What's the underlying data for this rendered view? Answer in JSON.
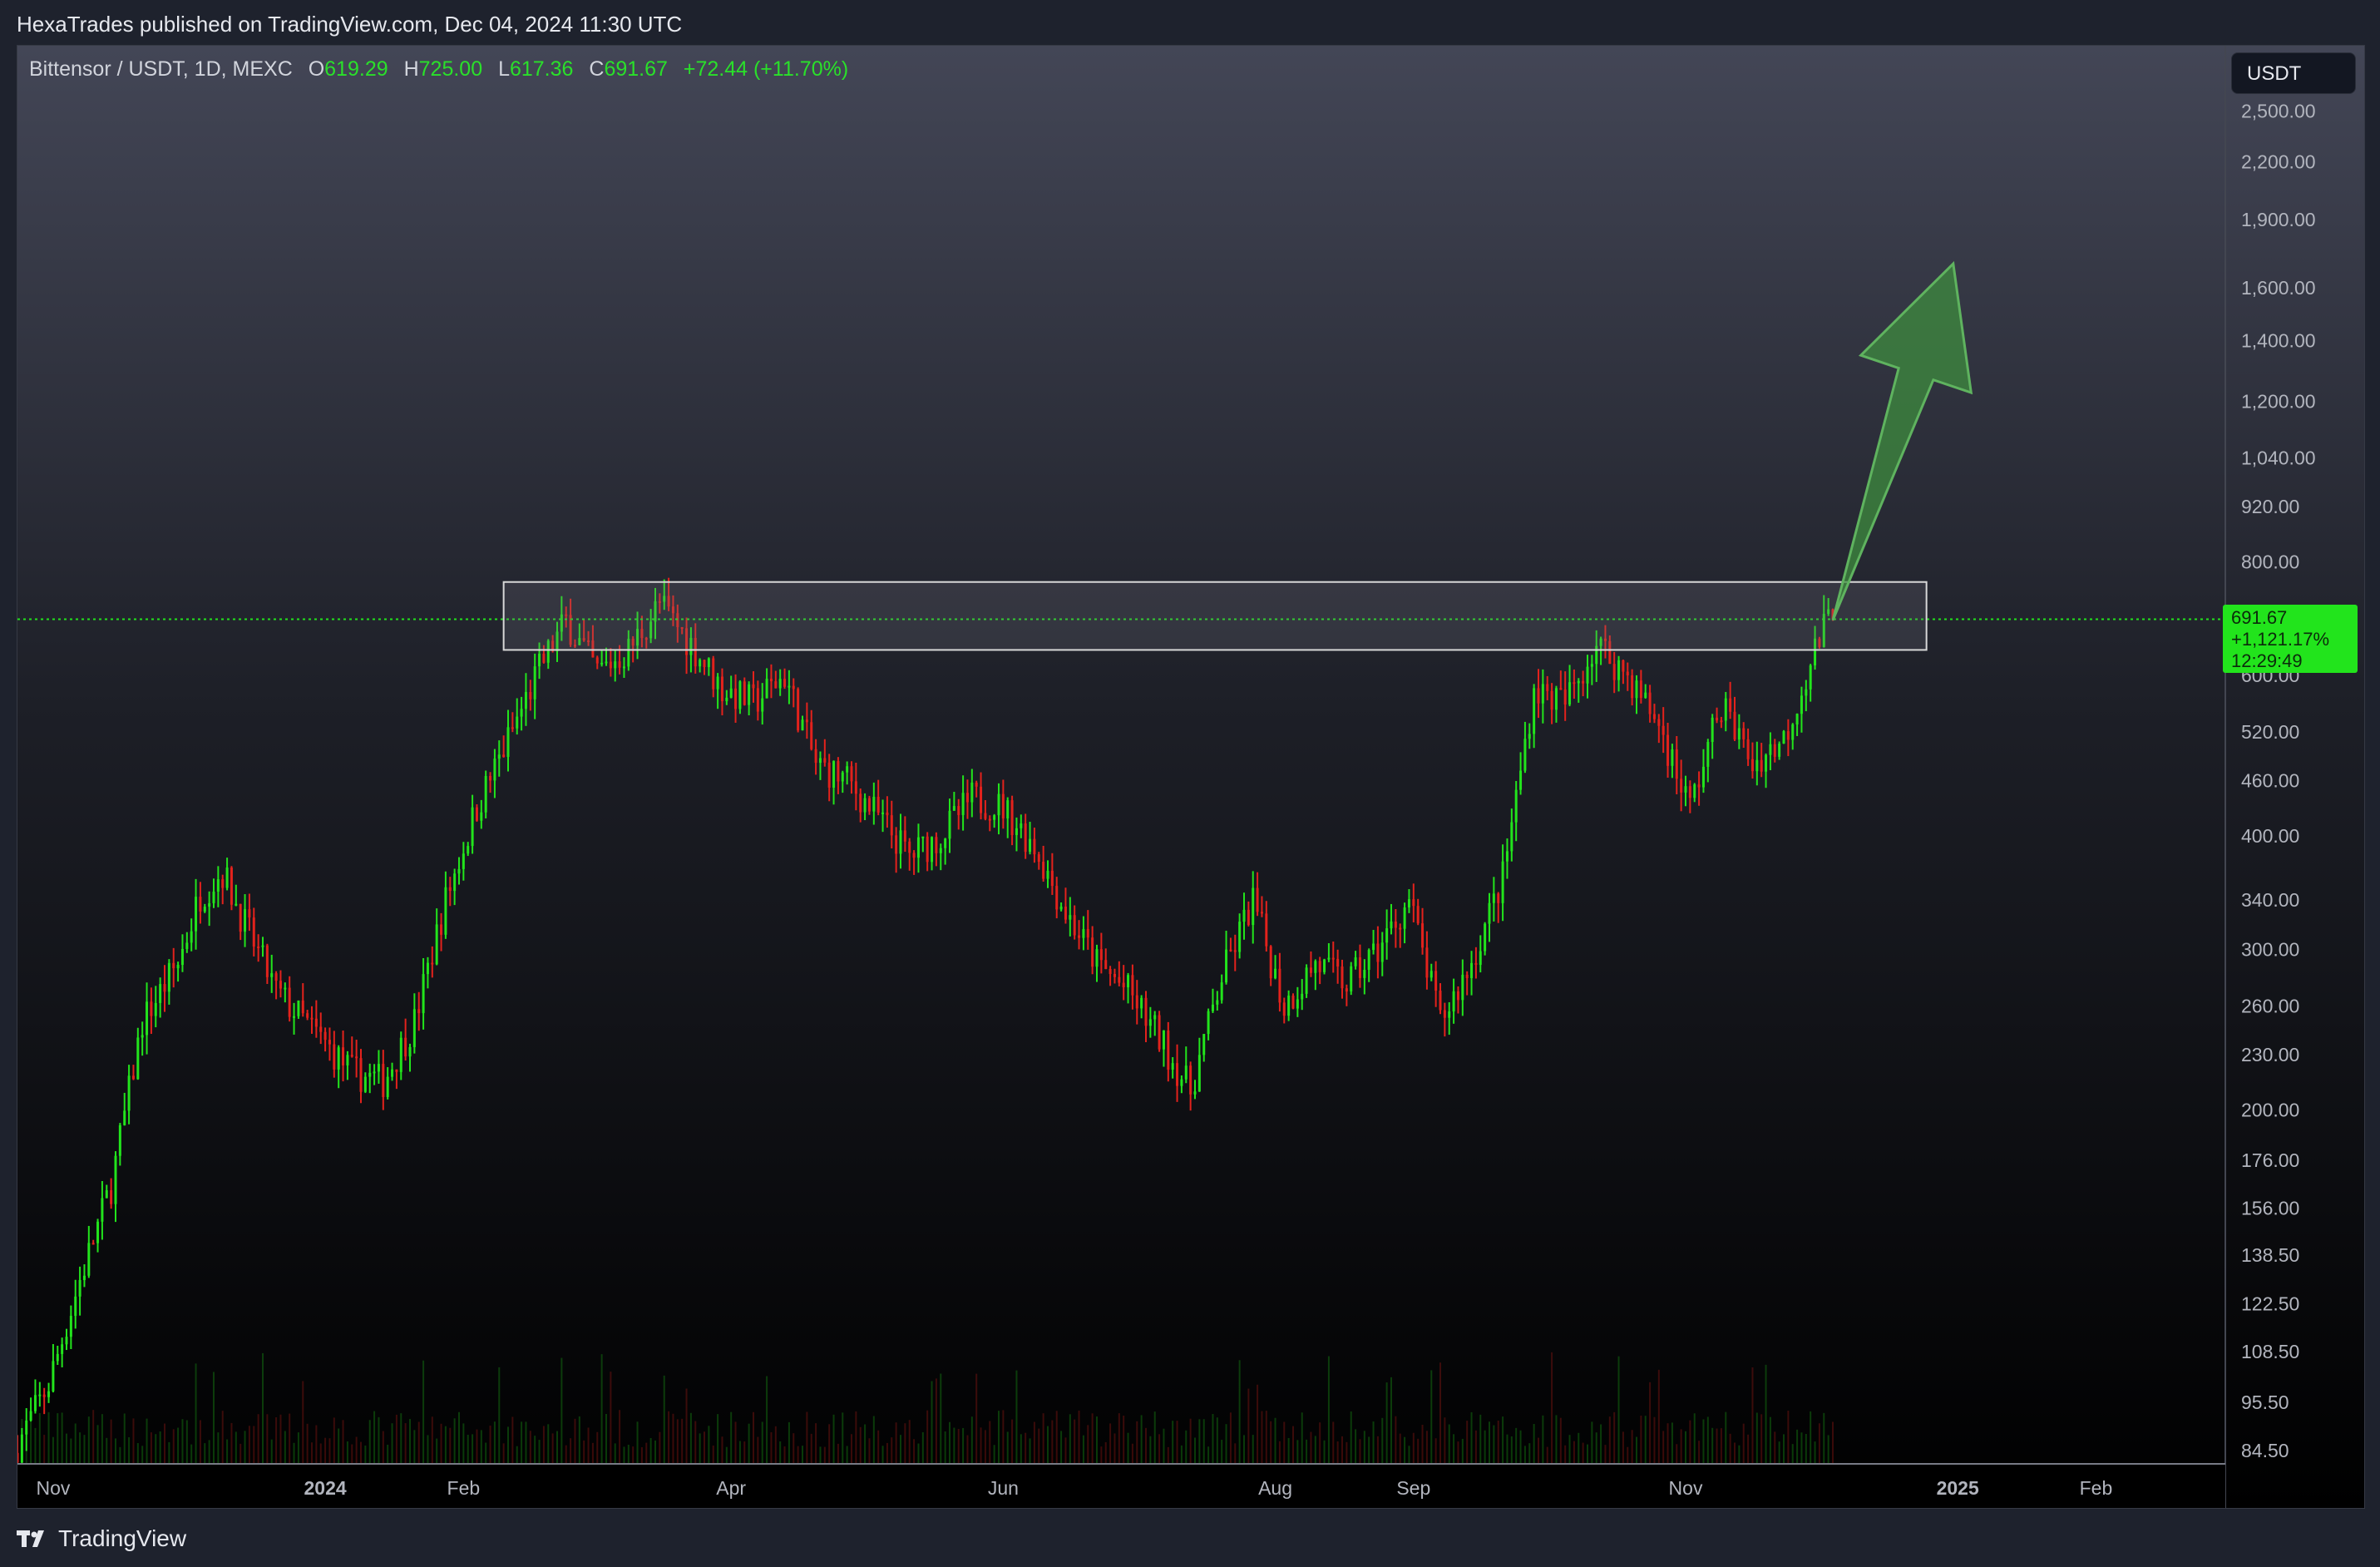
{
  "header": {
    "publish_text": "HexaTrades published on TradingView.com, Dec 04, 2024 11:30 UTC"
  },
  "legend": {
    "symbol": "Bittensor / USDT, 1D, MEXC",
    "o_label": "O",
    "o_value": "619.29",
    "h_label": "H",
    "h_value": "725.00",
    "l_label": "L",
    "l_value": "617.36",
    "c_label": "C",
    "c_value": "691.67",
    "change": "+72.44 (+11.70%)"
  },
  "currency_button": "USDT",
  "price_tag": {
    "price": "691.67",
    "change_pct": "+1,121.17%",
    "countdown": "12:29:49"
  },
  "footer": {
    "brand": "TradingView"
  },
  "colors": {
    "up": "#22e41c",
    "down": "#e3221c",
    "zone_stroke": "#d8d8d8",
    "arrow_fill": "#3f8f3f",
    "background_top": "#434656",
    "background_bottom": "#000000"
  },
  "chart_data": {
    "type": "candlestick",
    "x_axis": {
      "tick_labels": [
        "Nov",
        "2024",
        "Feb",
        "Apr",
        "Jun",
        "Aug",
        "Sep",
        "Nov",
        "2025",
        "Feb"
      ]
    },
    "y_axis": {
      "scale": "log",
      "range": [
        84.5,
        2600
      ],
      "tick_labels": [
        "2,500.00",
        "2,200.00",
        "1,900.00",
        "1,600.00",
        "1,400.00",
        "1,200.00",
        "1,040.00",
        "920.00",
        "800.00",
        "600.00",
        "520.00",
        "460.00",
        "400.00",
        "340.00",
        "300.00",
        "260.00",
        "230.00",
        "200.00",
        "176.00",
        "156.00",
        "138.50",
        "122.50",
        "108.50",
        "95.50",
        "84.50"
      ]
    },
    "x_range": [
      "2023-10-24",
      "2025-03-02"
    ],
    "last_price": 691.67,
    "resistance_zone": {
      "start": "2024-02-10",
      "end": "2024-12-25",
      "low": 640,
      "high": 760
    },
    "projection_arrow": {
      "from": {
        "date": "2024-12-04",
        "value": 690
      },
      "to": {
        "date": "2024-12-31",
        "value": 1700
      }
    },
    "price_path": [
      {
        "date": "2023-10-24",
        "value": 84
      },
      {
        "date": "2023-11-01",
        "value": 100
      },
      {
        "date": "2023-11-08",
        "value": 130
      },
      {
        "date": "2023-11-15",
        "value": 165
      },
      {
        "date": "2023-11-22",
        "value": 250
      },
      {
        "date": "2023-11-30",
        "value": 290
      },
      {
        "date": "2023-12-05",
        "value": 345
      },
      {
        "date": "2023-12-10",
        "value": 365
      },
      {
        "date": "2023-12-15",
        "value": 320
      },
      {
        "date": "2023-12-22",
        "value": 270
      },
      {
        "date": "2023-12-30",
        "value": 245
      },
      {
        "date": "2024-01-08",
        "value": 220
      },
      {
        "date": "2024-01-15",
        "value": 215
      },
      {
        "date": "2024-01-22",
        "value": 250
      },
      {
        "date": "2024-01-29",
        "value": 340
      },
      {
        "date": "2024-02-05",
        "value": 430
      },
      {
        "date": "2024-02-12",
        "value": 510
      },
      {
        "date": "2024-02-19",
        "value": 610
      },
      {
        "date": "2024-02-25",
        "value": 690
      },
      {
        "date": "2024-03-03",
        "value": 605
      },
      {
        "date": "2024-03-10",
        "value": 640
      },
      {
        "date": "2024-03-17",
        "value": 720
      },
      {
        "date": "2024-03-24",
        "value": 650
      },
      {
        "date": "2024-03-31",
        "value": 580
      },
      {
        "date": "2024-04-07",
        "value": 560
      },
      {
        "date": "2024-04-14",
        "value": 600
      },
      {
        "date": "2024-04-21",
        "value": 480
      },
      {
        "date": "2024-04-28",
        "value": 460
      },
      {
        "date": "2024-05-05",
        "value": 420
      },
      {
        "date": "2024-05-12",
        "value": 380
      },
      {
        "date": "2024-05-19",
        "value": 400
      },
      {
        "date": "2024-05-26",
        "value": 440
      },
      {
        "date": "2024-06-02",
        "value": 430
      },
      {
        "date": "2024-06-09",
        "value": 390
      },
      {
        "date": "2024-06-16",
        "value": 330
      },
      {
        "date": "2024-06-23",
        "value": 290
      },
      {
        "date": "2024-06-30",
        "value": 270
      },
      {
        "date": "2024-07-07",
        "value": 240
      },
      {
        "date": "2024-07-14",
        "value": 210
      },
      {
        "date": "2024-07-21",
        "value": 280
      },
      {
        "date": "2024-07-28",
        "value": 340
      },
      {
        "date": "2024-08-04",
        "value": 260
      },
      {
        "date": "2024-08-11",
        "value": 290
      },
      {
        "date": "2024-08-18",
        "value": 275
      },
      {
        "date": "2024-08-25",
        "value": 300
      },
      {
        "date": "2024-09-01",
        "value": 340
      },
      {
        "date": "2024-09-08",
        "value": 250
      },
      {
        "date": "2024-09-15",
        "value": 290
      },
      {
        "date": "2024-09-22",
        "value": 360
      },
      {
        "date": "2024-09-29",
        "value": 580
      },
      {
        "date": "2024-10-06",
        "value": 560
      },
      {
        "date": "2024-10-13",
        "value": 650
      },
      {
        "date": "2024-10-20",
        "value": 600
      },
      {
        "date": "2024-10-27",
        "value": 530
      },
      {
        "date": "2024-11-03",
        "value": 430
      },
      {
        "date": "2024-11-10",
        "value": 560
      },
      {
        "date": "2024-11-17",
        "value": 480
      },
      {
        "date": "2024-11-24",
        "value": 510
      },
      {
        "date": "2024-12-01",
        "value": 640
      },
      {
        "date": "2024-12-04",
        "value": 692
      }
    ]
  }
}
